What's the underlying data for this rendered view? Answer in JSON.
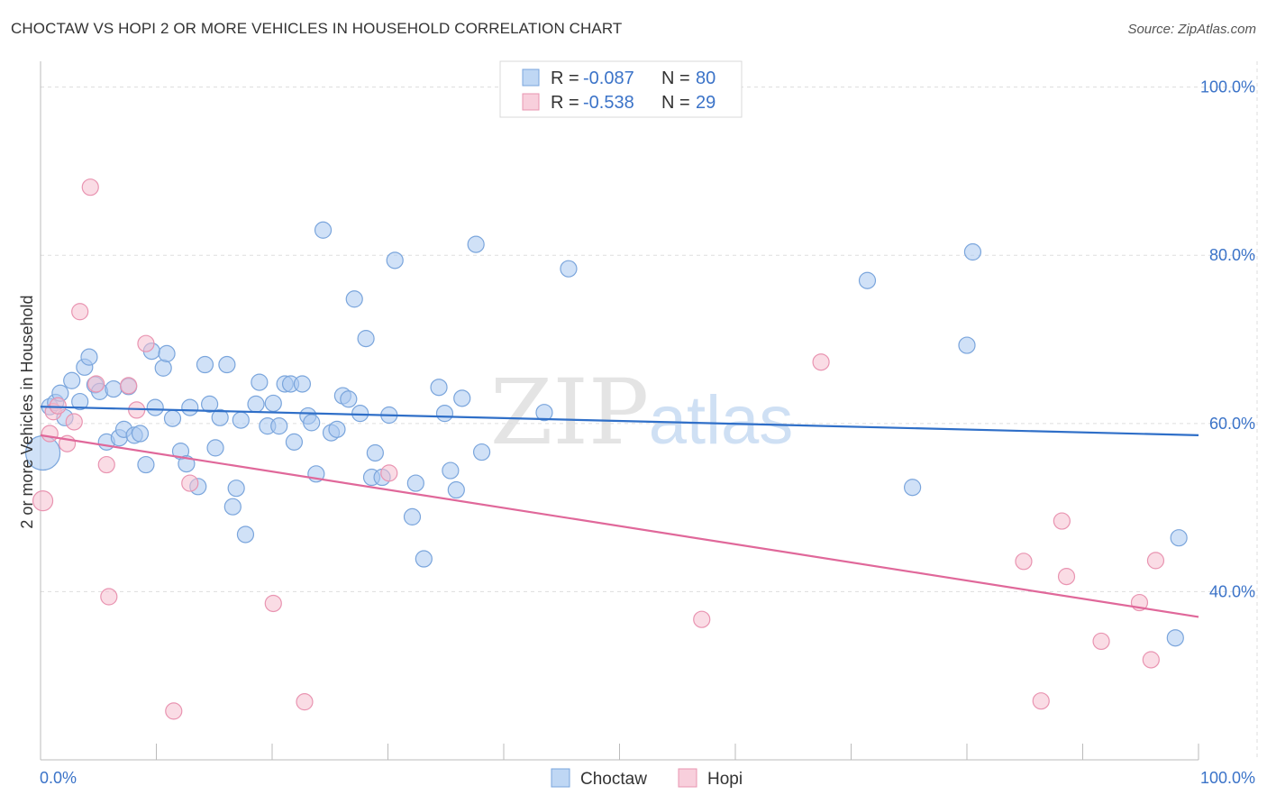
{
  "title": "CHOCTAW VS HOPI 2 OR MORE VEHICLES IN HOUSEHOLD CORRELATION CHART",
  "source": "Source: ZipAtlas.com",
  "watermark": {
    "zip": "ZIP",
    "atlas": "atlas"
  },
  "colors": {
    "choctaw_fill": "#a9c9f0",
    "choctaw_stroke": "#7aa5dc",
    "choctaw_line": "#2f6fc8",
    "hopi_fill": "#f6bfd0",
    "hopi_stroke": "#e994b1",
    "hopi_line": "#e0689a",
    "tick_text": "#3b73c8",
    "grid": "#dddddd"
  },
  "legend": {
    "rows": [
      {
        "r_label": "R =",
        "r_value": "-0.087",
        "n_label": "N =",
        "n_value": "80"
      },
      {
        "r_label": "R =",
        "r_value": "-0.538",
        "n_label": "N =",
        "n_value": "29"
      }
    ]
  },
  "chart_data": {
    "type": "scatter",
    "title": "CHOCTAW VS HOPI 2 OR MORE VEHICLES IN HOUSEHOLD CORRELATION CHART",
    "xlabel": "",
    "ylabel": "2 or more Vehicles in Household",
    "xlim": [
      0,
      100
    ],
    "ylim": [
      20,
      102
    ],
    "x_tick_labels": [
      "0.0%",
      "100.0%"
    ],
    "y_ticks": [
      40,
      60,
      80,
      100
    ],
    "y_tick_labels": [
      "40.0%",
      "60.0%",
      "80.0%",
      "100.0%"
    ],
    "grid": true,
    "legend_position": "top-center",
    "series": [
      {
        "name": "Choctaw",
        "trend": {
          "x": [
            0,
            100
          ],
          "y": [
            62.0,
            58.6
          ]
        },
        "points": [
          [
            0.2,
            56.5
          ],
          [
            0.8,
            62.0
          ],
          [
            1.3,
            62.5
          ],
          [
            1.7,
            63.6
          ],
          [
            2.1,
            60.7
          ],
          [
            2.7,
            65.1
          ],
          [
            3.4,
            62.6
          ],
          [
            3.8,
            66.7
          ],
          [
            4.2,
            67.9
          ],
          [
            4.7,
            64.6
          ],
          [
            5.1,
            63.8
          ],
          [
            5.7,
            57.8
          ],
          [
            6.3,
            64.1
          ],
          [
            6.8,
            58.3
          ],
          [
            7.2,
            59.3
          ],
          [
            7.6,
            64.4
          ],
          [
            8.1,
            58.6
          ],
          [
            8.6,
            58.8
          ],
          [
            9.1,
            55.1
          ],
          [
            9.6,
            68.6
          ],
          [
            9.9,
            61.9
          ],
          [
            10.6,
            66.6
          ],
          [
            10.9,
            68.3
          ],
          [
            11.4,
            60.6
          ],
          [
            12.1,
            56.7
          ],
          [
            12.6,
            55.2
          ],
          [
            12.9,
            61.9
          ],
          [
            13.6,
            52.5
          ],
          [
            14.2,
            67.0
          ],
          [
            14.6,
            62.3
          ],
          [
            15.1,
            57.1
          ],
          [
            15.5,
            60.7
          ],
          [
            16.1,
            67.0
          ],
          [
            16.6,
            50.1
          ],
          [
            16.9,
            52.3
          ],
          [
            17.3,
            60.4
          ],
          [
            17.7,
            46.8
          ],
          [
            18.6,
            62.3
          ],
          [
            18.9,
            64.9
          ],
          [
            19.6,
            59.7
          ],
          [
            20.1,
            62.4
          ],
          [
            20.6,
            59.7
          ],
          [
            21.1,
            64.7
          ],
          [
            21.6,
            64.7
          ],
          [
            21.9,
            57.8
          ],
          [
            22.6,
            64.7
          ],
          [
            23.1,
            60.9
          ],
          [
            23.4,
            60.1
          ],
          [
            23.8,
            54.0
          ],
          [
            24.4,
            83.0
          ],
          [
            25.1,
            58.9
          ],
          [
            25.6,
            59.3
          ],
          [
            26.1,
            63.3
          ],
          [
            26.6,
            62.9
          ],
          [
            27.1,
            74.8
          ],
          [
            27.6,
            61.2
          ],
          [
            28.1,
            70.1
          ],
          [
            28.6,
            53.6
          ],
          [
            28.9,
            56.5
          ],
          [
            29.5,
            53.6
          ],
          [
            30.1,
            61.0
          ],
          [
            30.6,
            79.4
          ],
          [
            32.1,
            48.9
          ],
          [
            32.4,
            52.9
          ],
          [
            33.1,
            43.9
          ],
          [
            34.4,
            64.3
          ],
          [
            34.9,
            61.2
          ],
          [
            35.4,
            54.4
          ],
          [
            35.9,
            52.1
          ],
          [
            36.4,
            63.0
          ],
          [
            37.6,
            81.3
          ],
          [
            38.1,
            56.6
          ],
          [
            43.5,
            61.3
          ],
          [
            45.6,
            78.4
          ],
          [
            71.4,
            77.0
          ],
          [
            75.3,
            52.4
          ],
          [
            80.0,
            69.3
          ],
          [
            80.5,
            80.4
          ],
          [
            98.0,
            34.5
          ],
          [
            98.3,
            46.4
          ]
        ]
      },
      {
        "name": "Hopi",
        "trend": {
          "x": [
            0,
            100
          ],
          "y": [
            58.6,
            37.0
          ]
        },
        "points": [
          [
            0.2,
            50.8
          ],
          [
            0.8,
            58.8
          ],
          [
            1.1,
            61.4
          ],
          [
            1.5,
            62.1
          ],
          [
            2.3,
            57.6
          ],
          [
            2.9,
            60.2
          ],
          [
            3.4,
            73.3
          ],
          [
            4.3,
            88.1
          ],
          [
            4.8,
            64.7
          ],
          [
            5.7,
            55.1
          ],
          [
            5.9,
            39.4
          ],
          [
            7.6,
            64.5
          ],
          [
            8.3,
            61.6
          ],
          [
            9.1,
            69.5
          ],
          [
            11.5,
            25.8
          ],
          [
            12.9,
            52.9
          ],
          [
            20.1,
            38.6
          ],
          [
            22.8,
            26.9
          ],
          [
            30.1,
            54.1
          ],
          [
            57.1,
            36.7
          ],
          [
            67.4,
            67.3
          ],
          [
            84.9,
            43.6
          ],
          [
            86.4,
            27.0
          ],
          [
            88.2,
            48.4
          ],
          [
            88.6,
            41.8
          ],
          [
            91.6,
            34.1
          ],
          [
            94.9,
            38.7
          ],
          [
            95.9,
            31.9
          ],
          [
            96.3,
            43.7
          ]
        ]
      }
    ]
  },
  "bottom_legend": [
    {
      "label": "Choctaw"
    },
    {
      "label": "Hopi"
    }
  ]
}
